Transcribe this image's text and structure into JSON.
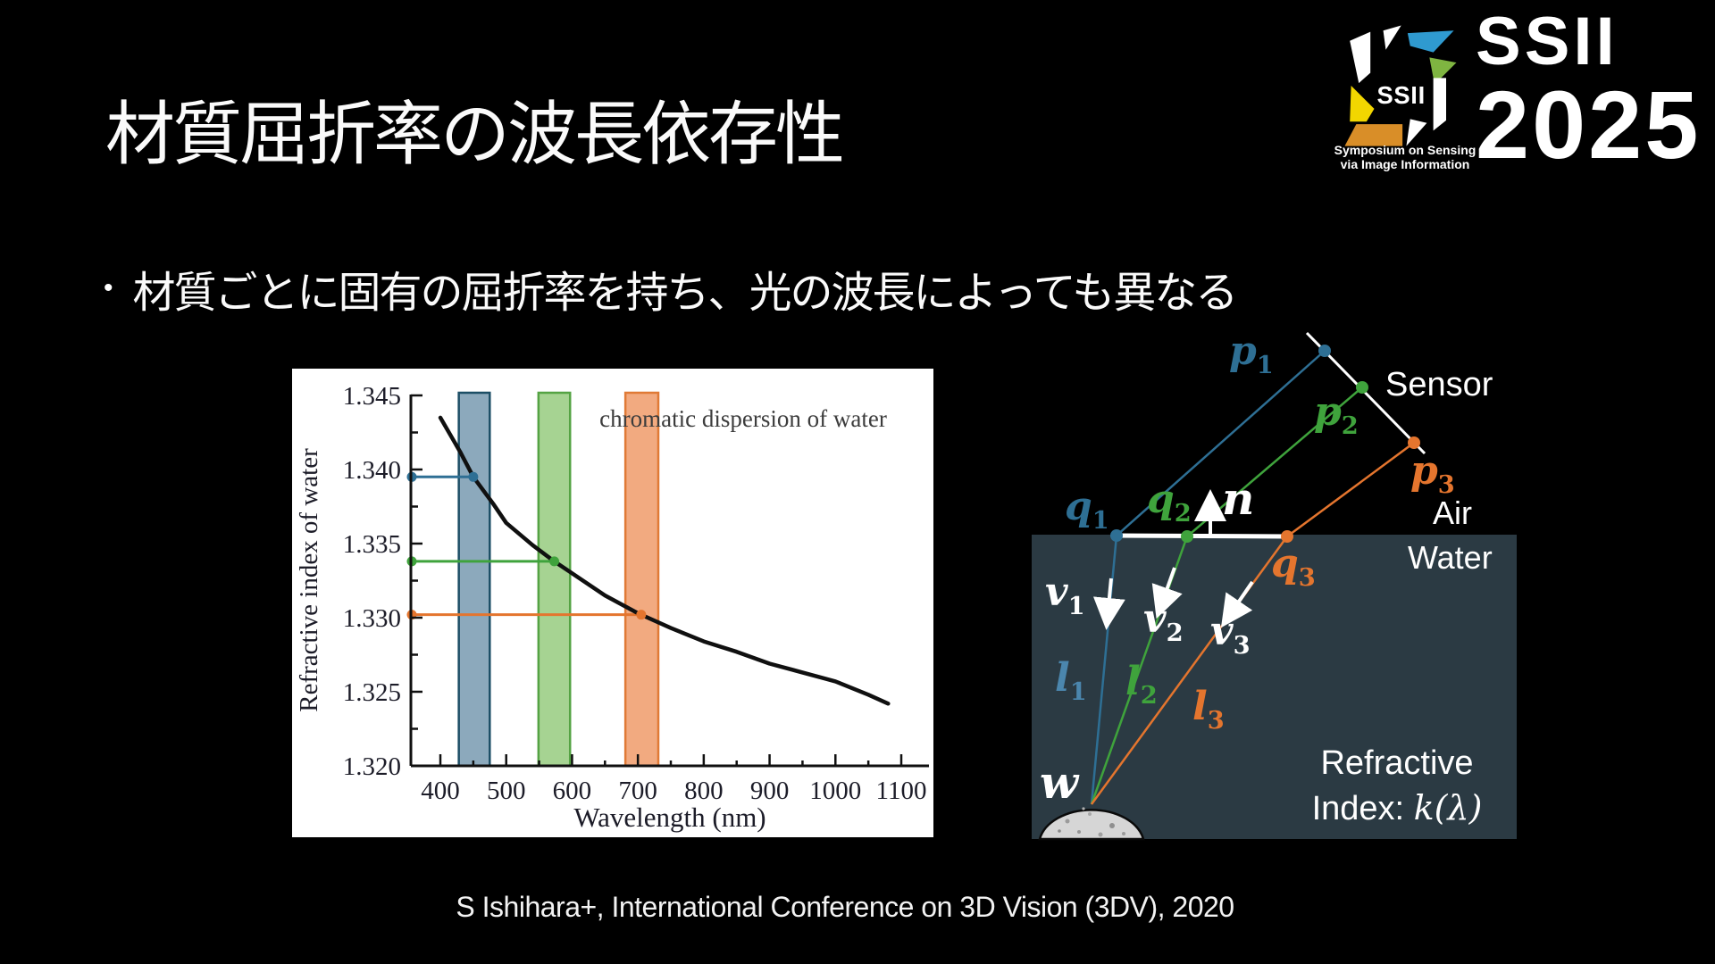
{
  "slide": {
    "title": "材質屈折率の波長依存性",
    "bullet_marker": "•",
    "bullet": "材質ごとに固有の屈折率を持ち、光の波長によっても異なる",
    "citation": "S Ishihara+, International Conference on 3D Vision (3DV), 2020"
  },
  "logo": {
    "icon_name": "ssii-aperture-logo",
    "icon_text": "SSII",
    "title_line1": "SSII",
    "title_line2": "2025",
    "tagline_line1": "Symposium on Sensing",
    "tagline_line2": "via Image Information",
    "colors": {
      "blue": "#2f9ad0",
      "green": "#7fb541",
      "yellow": "#f2d600",
      "orange": "#d98e28"
    }
  },
  "chart_data": {
    "type": "line",
    "title": "chromatic dispersion of water",
    "xlabel": "Wavelength (nm)",
    "ylabel": "Refractive index of water",
    "xlim": [
      355,
      1145
    ],
    "ylim": [
      1.32,
      1.345
    ],
    "grid": false,
    "xticks": [
      400,
      500,
      600,
      700,
      800,
      900,
      1000,
      1100
    ],
    "yticks": [
      1.345,
      1.34,
      1.335,
      1.33,
      1.325,
      1.32
    ],
    "curve": [
      [
        400,
        1.3435
      ],
      [
        430,
        1.3412
      ],
      [
        450,
        1.3395
      ],
      [
        480,
        1.3377
      ],
      [
        500,
        1.3364
      ],
      [
        540,
        1.3349
      ],
      [
        573,
        1.3338
      ],
      [
        600,
        1.333
      ],
      [
        650,
        1.3315
      ],
      [
        700,
        1.3303
      ],
      [
        750,
        1.3293
      ],
      [
        800,
        1.3284
      ],
      [
        850,
        1.3277
      ],
      [
        900,
        1.3269
      ],
      [
        950,
        1.3263
      ],
      [
        1000,
        1.3257
      ],
      [
        1050,
        1.3248
      ],
      [
        1080,
        1.3242
      ]
    ],
    "bands": [
      {
        "name": "blue-band",
        "from": 428,
        "to": 475,
        "fill": "#8ca9bc",
        "stroke": "#1d4f66"
      },
      {
        "name": "green-band",
        "from": 549,
        "to": 597,
        "fill": "#a6d392",
        "stroke": "#55a344"
      },
      {
        "name": "orange-band",
        "from": 681,
        "to": 731,
        "fill": "#f2aa80",
        "stroke": "#e07a36"
      }
    ],
    "markers": [
      {
        "name": "blue-wavelength",
        "wavelength": 450,
        "value": 1.3395,
        "color": "#2e6f94"
      },
      {
        "name": "green-wavelength",
        "wavelength": 573,
        "value": 1.3338,
        "color": "#3fa33c"
      },
      {
        "name": "orange-wavelength",
        "wavelength": 705,
        "value": 1.3302,
        "color": "#e4752e"
      }
    ]
  },
  "diagram": {
    "texts": {
      "sensor": "Sensor",
      "air": "Air",
      "water": "Water",
      "refractive_line1": "Refractive",
      "refractive_line2": "Index:",
      "k_expr": "k(λ)"
    },
    "labels": {
      "p1": {
        "base": "p",
        "sub": "1"
      },
      "p2": {
        "base": "p",
        "sub": "2"
      },
      "p3": {
        "base": "p",
        "sub": "3"
      },
      "q1": {
        "base": "q",
        "sub": "1"
      },
      "q2": {
        "base": "q",
        "sub": "2"
      },
      "q3": {
        "base": "q",
        "sub": "3"
      },
      "v1": {
        "base": "v",
        "sub": "1"
      },
      "v2": {
        "base": "v",
        "sub": "2"
      },
      "v3": {
        "base": "v",
        "sub": "3"
      },
      "l1": {
        "base": "l",
        "sub": "1"
      },
      "l2": {
        "base": "l",
        "sub": "2"
      },
      "l3": {
        "base": "l",
        "sub": "3"
      },
      "n": {
        "base": "n",
        "sub": ""
      },
      "w": {
        "base": "w",
        "sub": ""
      }
    },
    "colors": {
      "blue": "#2e6f94",
      "blue_light": "#4b86ad",
      "green": "#3fa33c",
      "orange": "#e4752e",
      "water_bg": "#2b3a43"
    }
  }
}
